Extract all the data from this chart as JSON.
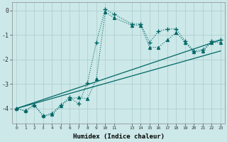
{
  "xlabel": "Humidex (Indice chaleur)",
  "bg_color": "#cce8e8",
  "grid_color": "#aacccc",
  "line_color": "#006666",
  "x_ticks": [
    0,
    1,
    2,
    3,
    4,
    5,
    6,
    7,
    8,
    9,
    10,
    11,
    13,
    14,
    15,
    16,
    17,
    18,
    19,
    20,
    21,
    22,
    23
  ],
  "ylim": [
    -4.6,
    0.35
  ],
  "xlim": [
    -0.5,
    23.5
  ],
  "yticks": [
    0,
    -1,
    -2,
    -3,
    -4
  ],
  "series_dotted_plus": {
    "x": [
      0,
      1,
      2,
      3,
      4,
      5,
      6,
      7,
      8,
      9,
      10,
      11,
      13,
      14,
      15,
      16,
      17,
      18,
      19,
      20,
      21,
      22,
      23
    ],
    "y": [
      -4.0,
      -4.1,
      -3.85,
      -4.3,
      -4.2,
      -3.85,
      -3.55,
      -3.8,
      -2.95,
      -1.3,
      0.05,
      -0.15,
      -0.55,
      -0.55,
      -1.3,
      -0.85,
      -0.75,
      -0.75,
      -1.25,
      -1.65,
      -1.6,
      -1.25,
      -1.2
    ]
  },
  "series_dotted_tri": {
    "x": [
      0,
      1,
      2,
      3,
      4,
      5,
      6,
      7,
      8,
      9,
      10,
      11,
      13,
      14,
      15,
      16,
      17,
      18,
      19,
      20,
      21,
      22,
      23
    ],
    "y": [
      -4.0,
      -4.1,
      -3.85,
      -4.3,
      -4.25,
      -3.9,
      -3.6,
      -3.55,
      -3.6,
      -2.8,
      -0.05,
      -0.3,
      -0.6,
      -0.6,
      -1.5,
      -1.5,
      -1.2,
      -0.9,
      -1.3,
      -1.7,
      -1.65,
      -1.3,
      -1.3
    ]
  },
  "series_line1": {
    "x": [
      0,
      23
    ],
    "y": [
      -4.0,
      -1.2
    ]
  },
  "series_line2": {
    "x": [
      0,
      23
    ],
    "y": [
      -4.0,
      -1.65
    ]
  }
}
